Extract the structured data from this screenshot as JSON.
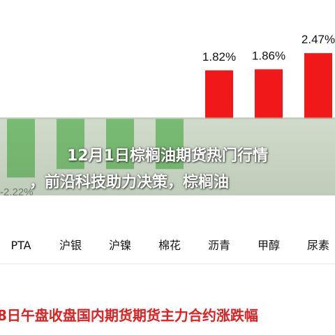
{
  "chart_data": {
    "type": "bar",
    "title": "8日午盘收盘国内期货期货主力合约涨跌幅",
    "categories": [
      "PTA",
      "沪银",
      "沪镍",
      "棉花",
      "沥青",
      "甲醇",
      "尿素"
    ],
    "values": [
      -2.22,
      -1.9,
      -1.9,
      -1.9,
      1.82,
      1.86,
      2.47
    ],
    "data_labels": [
      "-2.22%",
      "",
      "",
      "",
      "1.82%",
      "1.86%",
      "2.47%"
    ],
    "ylim": [
      -3.0,
      2.6
    ],
    "colors": {
      "positive": "#f01818",
      "negative": "#3cb83c"
    },
    "grid": false,
    "legend": "none"
  },
  "overlay": {
    "line1": "12月1日棕榈油期货热门行情",
    "line2": "，前沿科技助力决策，棕榈油"
  }
}
